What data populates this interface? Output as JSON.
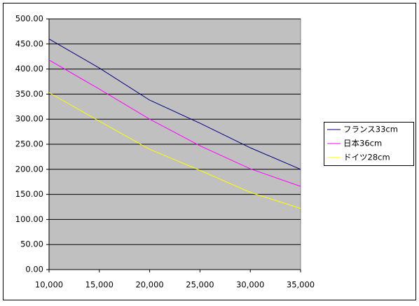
{
  "chart_data": {
    "type": "line",
    "x": [
      10000,
      15000,
      20000,
      25000,
      30000,
      35000
    ],
    "series": [
      {
        "name": "フランス33cm",
        "color": "#000080",
        "values": [
          460,
          402,
          338,
          292,
          243,
          200
        ]
      },
      {
        "name": "日本36cm",
        "color": "#ff00ff",
        "values": [
          418,
          360,
          300,
          247,
          201,
          166
        ]
      },
      {
        "name": "ドイツ28cm",
        "color": "#ffff00",
        "values": [
          353,
          296,
          240,
          198,
          154,
          122
        ]
      }
    ],
    "xlim": [
      10000,
      35000
    ],
    "xticks": [
      {
        "value": 10000,
        "label": "10,000"
      },
      {
        "value": 15000,
        "label": "15,000"
      },
      {
        "value": 20000,
        "label": "20,000"
      },
      {
        "value": 25000,
        "label": "25,000"
      },
      {
        "value": 30000,
        "label": "30,000"
      },
      {
        "value": 35000,
        "label": "35,000"
      }
    ],
    "ylim": [
      0,
      500
    ],
    "yticks": [
      {
        "value": 0,
        "label": "0.00"
      },
      {
        "value": 50,
        "label": "50.00"
      },
      {
        "value": 100,
        "label": "100.00"
      },
      {
        "value": 150,
        "label": "150.00"
      },
      {
        "value": 200,
        "label": "200.00"
      },
      {
        "value": 250,
        "label": "250.00"
      },
      {
        "value": 300,
        "label": "300.00"
      },
      {
        "value": 350,
        "label": "350.00"
      },
      {
        "value": 400,
        "label": "400.00"
      },
      {
        "value": 450,
        "label": "450.00"
      },
      {
        "value": 500,
        "label": "500.00"
      }
    ],
    "grid": true,
    "legend": "right"
  }
}
